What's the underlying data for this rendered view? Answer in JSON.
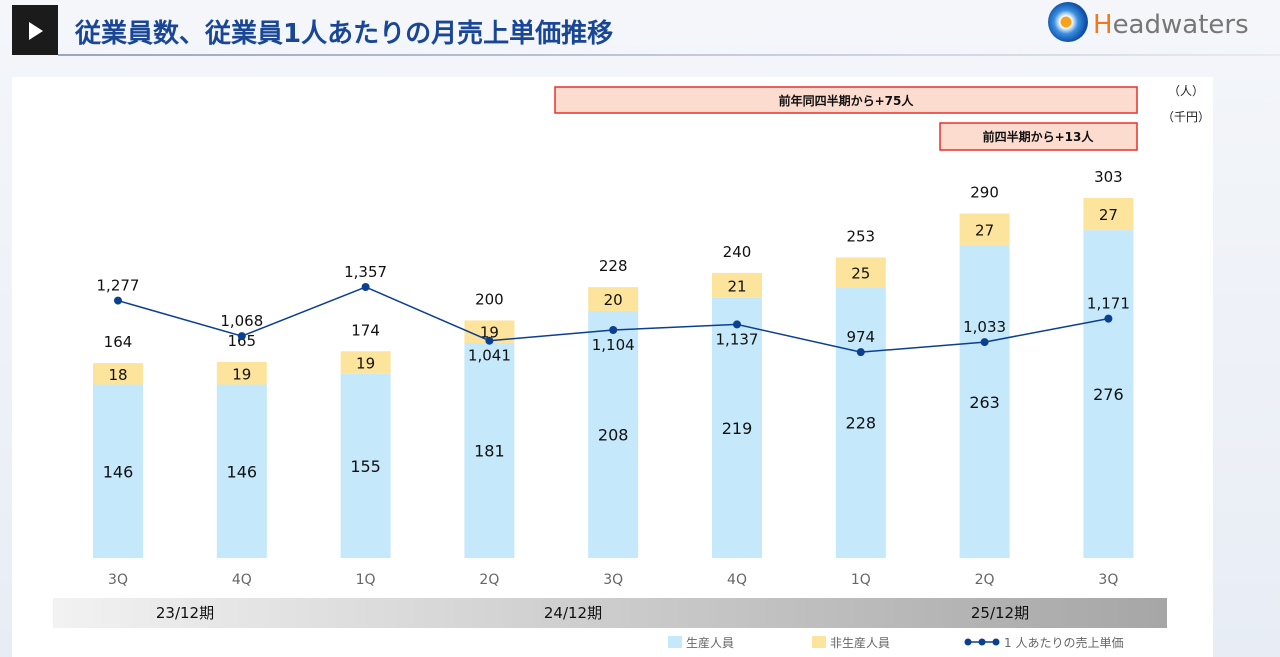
{
  "header": {
    "title": "従業員数、従業員1人あたりの月売上単価推移",
    "logo_text": "Headwaters",
    "icon": "play-icon"
  },
  "annotations": {
    "yoy": "前年同四半期から+75人",
    "qoq": "前四半期から+13人"
  },
  "units": {
    "people": "（人）",
    "yen": "（千円）"
  },
  "colors": {
    "production": "#c5e8fb",
    "non_production": "#fde49c",
    "line": "#0b3f91",
    "title": "#1a4696",
    "annotation_fill": "#fddcd0",
    "annotation_border": "#e8302a"
  },
  "chart_data": {
    "type": "bar",
    "stacked": true,
    "categories": [
      "3Q",
      "4Q",
      "1Q",
      "2Q",
      "3Q",
      "4Q",
      "1Q",
      "2Q",
      "3Q"
    ],
    "periods": [
      {
        "label": "23/12期"
      },
      {
        "label": "24/12期"
      },
      {
        "label": "25/12期"
      }
    ],
    "series": [
      {
        "name": "生産人員",
        "values": [
          146,
          146,
          155,
          181,
          208,
          219,
          228,
          263,
          276
        ]
      },
      {
        "name": "非生産人員",
        "values": [
          18,
          19,
          19,
          19,
          20,
          21,
          25,
          27,
          27
        ]
      },
      {
        "name": "1 人あたりの売上単価",
        "type": "line",
        "values": [
          1277,
          1068,
          1357,
          1041,
          1104,
          1137,
          974,
          1033,
          1171
        ]
      }
    ],
    "totals": [
      164,
      165,
      174,
      200,
      228,
      240,
      253,
      290,
      303
    ],
    "legend": "bottom-right",
    "grid": false
  }
}
